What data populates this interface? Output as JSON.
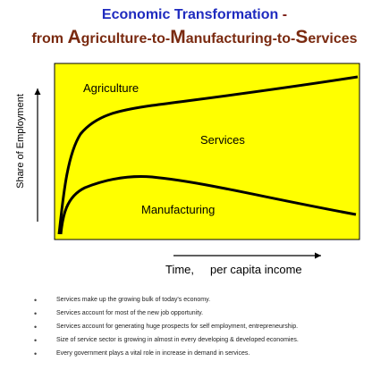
{
  "title": {
    "line1": "Economic Transformation",
    "line1_dash": "-",
    "line2": {
      "prefix": "from ",
      "a_cap": "A",
      "a_rest": "griculture-to-",
      "m_cap": "M",
      "m_rest": "anufacturing-to-",
      "s_cap": "S",
      "s_rest": "ervices"
    }
  },
  "diagram": {
    "y_axis_label": "Share of Employment",
    "x_axis_label": "Time,",
    "x_axis_label_2": "per capita income",
    "curve_labels": {
      "agriculture": "Agriculture",
      "services": "Services",
      "manufacturing": "Manufacturing"
    },
    "colors": {
      "panel_fill": "#ffff00",
      "curve": "#000000"
    }
  },
  "bullets": [
    "Services make up the growing bulk of today's economy.",
    "Services account for most of the new job opportunity.",
    "Services account for generating huge prospects for self employment, entrepreneurship.",
    "Size of service sector is growing in almost in every developing & developed economies.",
    "Every government plays a vital role in increase in demand in services."
  ],
  "bullet_symbol": "•"
}
